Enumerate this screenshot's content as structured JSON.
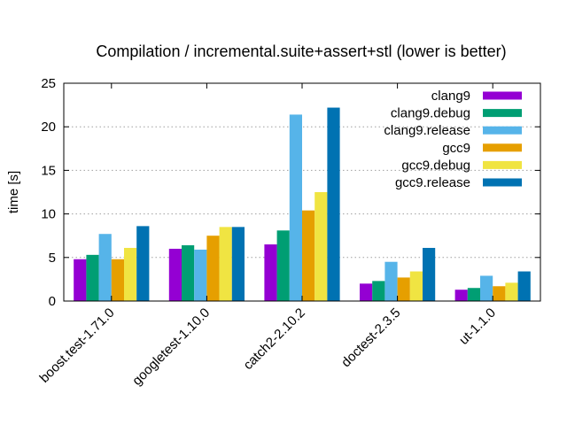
{
  "chart_data": {
    "type": "bar",
    "title": "Compilation / incremental.suite+assert+stl (lower is better)",
    "xlabel": "",
    "ylabel": "time [s]",
    "ylim": [
      0,
      25
    ],
    "yticks": [
      0,
      5,
      10,
      15,
      20,
      25
    ],
    "grid": true,
    "legend_position": "top-right",
    "categories": [
      "boost.test-1.71.0",
      "googletest-1.10.0",
      "catch2-2.10.2",
      "doctest-2.3.5",
      "ut-1.1.0"
    ],
    "series": [
      {
        "name": "clang9",
        "color": "#9400d3",
        "values": [
          4.8,
          6.0,
          6.5,
          2.0,
          1.3
        ]
      },
      {
        "name": "clang9.debug",
        "color": "#009e73",
        "values": [
          5.3,
          6.4,
          8.1,
          2.3,
          1.5
        ]
      },
      {
        "name": "clang9.release",
        "color": "#56b4e9",
        "values": [
          7.7,
          5.9,
          21.4,
          4.5,
          2.9
        ]
      },
      {
        "name": "gcc9",
        "color": "#e69f00",
        "values": [
          4.8,
          7.5,
          10.4,
          2.7,
          1.7
        ]
      },
      {
        "name": "gcc9.debug",
        "color": "#f0e442",
        "values": [
          6.1,
          8.5,
          12.5,
          3.4,
          2.1
        ]
      },
      {
        "name": "gcc9.release",
        "color": "#0072b2",
        "values": [
          8.6,
          8.5,
          22.2,
          6.1,
          3.4
        ]
      }
    ]
  }
}
